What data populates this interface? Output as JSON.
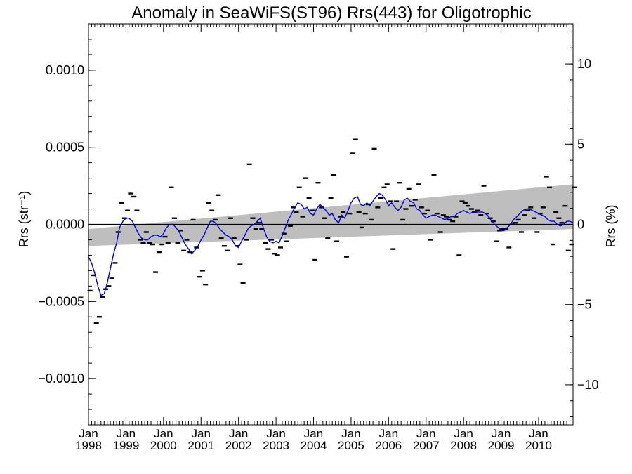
{
  "chart_data": {
    "type": "scatter",
    "title": "Anomaly in SeaWiFS(ST96) Rrs(443) for Oligotrophic",
    "ylabel_left": "Rrs (str⁻¹)",
    "ylabel_right": "Rrs (%)",
    "xlim": [
      1998.0,
      2010.917
    ],
    "ylim": [
      -0.0013,
      0.0013
    ],
    "ylim_right": [
      -12.5,
      12.5
    ],
    "left_ticks": [
      {
        "value": 0.001,
        "label": "0.0010"
      },
      {
        "value": 0.0005,
        "label": "0.0005"
      },
      {
        "value": 0.0,
        "label": "0.0000"
      },
      {
        "value": -0.0005,
        "label": "−0.0005"
      },
      {
        "value": -0.001,
        "label": "−0.0010"
      }
    ],
    "right_ticks": [
      {
        "value": 10,
        "label": "10"
      },
      {
        "value": 5,
        "label": "5"
      },
      {
        "value": 0,
        "label": "0"
      },
      {
        "value": -5,
        "label": "−5"
      },
      {
        "value": -10,
        "label": "−10"
      }
    ],
    "x_ticks": [
      {
        "value": 1998,
        "month": "Jan",
        "year": "1998"
      },
      {
        "value": 1999,
        "month": "Jan",
        "year": "1999"
      },
      {
        "value": 2000,
        "month": "Jan",
        "year": "2000"
      },
      {
        "value": 2001,
        "month": "Jan",
        "year": "2001"
      },
      {
        "value": 2002,
        "month": "Jan",
        "year": "2002"
      },
      {
        "value": 2003,
        "month": "Jan",
        "year": "2003"
      },
      {
        "value": 2004,
        "month": "Jan",
        "year": "2004"
      },
      {
        "value": 2005,
        "month": "Jan",
        "year": "2005"
      },
      {
        "value": 2006,
        "month": "Jan",
        "year": "2006"
      },
      {
        "value": 2007,
        "month": "Jan",
        "year": "2007"
      },
      {
        "value": 2008,
        "month": "Jan",
        "year": "2008"
      },
      {
        "value": 2009,
        "month": "Jan",
        "year": "2009"
      },
      {
        "value": 2010,
        "month": "Jan",
        "year": "2010"
      }
    ],
    "zero_line": 0.0,
    "trend_band": {
      "x": [
        1998.0,
        2010.917
      ],
      "lower": [
        -0.00014,
        -3e-05
      ],
      "upper": [
        -3e-05,
        0.00026
      ]
    },
    "monthly_points": [
      [
        1998.04,
        -0.00043
      ],
      [
        1998.12,
        -0.00033
      ],
      [
        1998.21,
        -0.00064
      ],
      [
        1998.29,
        -0.0006
      ],
      [
        1998.38,
        -0.00047
      ],
      [
        1998.46,
        -0.00042
      ],
      [
        1998.54,
        -0.0004
      ],
      [
        1998.62,
        -0.00035
      ],
      [
        1998.71,
        -0.00025
      ],
      [
        1998.79,
        -5e-05
      ],
      [
        1998.88,
        0.00014
      ],
      [
        1998.96,
        4e-05
      ],
      [
        1999.04,
        9e-05
      ],
      [
        1999.12,
        0.0002
      ],
      [
        1999.21,
        0.00018
      ],
      [
        1999.29,
        9e-05
      ],
      [
        1999.38,
        -0.0001
      ],
      [
        1999.46,
        -0.00012
      ],
      [
        1999.54,
        -5e-05
      ],
      [
        1999.62,
        -0.00012
      ],
      [
        1999.71,
        -0.00013
      ],
      [
        1999.79,
        -0.00031
      ],
      [
        1999.88,
        -0.00018
      ],
      [
        1999.96,
        -0.00013
      ],
      [
        2000.04,
        -8e-05
      ],
      [
        2000.12,
        -0.00012
      ],
      [
        2000.21,
        0.00024
      ],
      [
        2000.29,
        4e-05
      ],
      [
        2000.38,
        -0.00012
      ],
      [
        2000.46,
        -4e-05
      ],
      [
        2000.54,
        -0.00017
      ],
      [
        2000.62,
        -0.0001
      ],
      [
        2000.71,
        -0.00018
      ],
      [
        2000.79,
        3e-05
      ],
      [
        2000.88,
        -0.00015
      ],
      [
        2000.96,
        -0.00034
      ],
      [
        2001.04,
        -0.0003
      ],
      [
        2001.12,
        -0.00039
      ],
      [
        2001.21,
        0.00014
      ],
      [
        2001.29,
        9e-05
      ],
      [
        2001.38,
        3e-05
      ],
      [
        2001.46,
        0.00019
      ],
      [
        2001.54,
        -9e-05
      ],
      [
        2001.62,
        -0.00014
      ],
      [
        2001.71,
        -0.00017
      ],
      [
        2001.79,
        4e-05
      ],
      [
        2001.88,
        -9e-05
      ],
      [
        2001.96,
        -0.00014
      ],
      [
        2002.04,
        -0.00026
      ],
      [
        2002.12,
        -0.00038
      ],
      [
        2002.21,
        -0.0001
      ],
      [
        2002.29,
        0.00039
      ],
      [
        2002.38,
        4e-05
      ],
      [
        2002.46,
        -3e-05
      ],
      [
        2002.54,
        1e-05
      ],
      [
        2002.62,
        -3e-05
      ],
      [
        2002.71,
        -0.00012
      ],
      [
        2002.79,
        -0.00016
      ],
      [
        2002.88,
        -0.0001
      ],
      [
        2002.96,
        -0.00019
      ],
      [
        2003.04,
        -0.0002
      ],
      [
        2003.12,
        -0.00015
      ],
      [
        2003.21,
        -6e-05
      ],
      [
        2003.29,
        -0.00011
      ],
      [
        2003.38,
        -1e-05
      ],
      [
        2003.46,
        0.00011
      ],
      [
        2003.54,
        8e-05
      ],
      [
        2003.62,
        0.00024
      ],
      [
        2003.71,
        5e-05
      ],
      [
        2003.79,
        0.0003
      ],
      [
        2003.88,
        0.00017
      ],
      [
        2003.96,
        9e-05
      ],
      [
        2004.04,
        -0.00023
      ],
      [
        2004.12,
        0.00027
      ],
      [
        2004.21,
        0.00011
      ],
      [
        2004.29,
        4e-05
      ],
      [
        2004.38,
        -9e-05
      ],
      [
        2004.46,
        0.00017
      ],
      [
        2004.54,
        0.00032
      ],
      [
        2004.62,
        -0.00011
      ],
      [
        2004.71,
        5e-05
      ],
      [
        2004.79,
        8e-05
      ],
      [
        2004.88,
        -0.00021
      ],
      [
        2004.96,
        7e-05
      ],
      [
        2005.04,
        0.00046
      ],
      [
        2005.12,
        0.00055
      ],
      [
        2005.21,
        8e-05
      ],
      [
        2005.29,
        -2e-05
      ],
      [
        2005.38,
        7e-05
      ],
      [
        2005.46,
        0.00013
      ],
      [
        2005.54,
        3e-05
      ],
      [
        2005.62,
        0.00049
      ],
      [
        2005.71,
        0.00011
      ],
      [
        2005.79,
        0.00017
      ],
      [
        2005.88,
        0.00024
      ],
      [
        2005.96,
        0.00026
      ],
      [
        2006.04,
        0.00015
      ],
      [
        2006.12,
        -0.00016
      ],
      [
        2006.21,
        0.00015
      ],
      [
        2006.29,
        0.00027
      ],
      [
        2006.38,
        3e-05
      ],
      [
        2006.46,
        0.0001
      ],
      [
        2006.54,
        0.00023
      ],
      [
        2006.62,
        0.00012
      ],
      [
        2006.71,
        0.00016
      ],
      [
        2006.79,
        0.00026
      ],
      [
        2006.88,
        0.00011
      ],
      [
        2006.96,
        7e-05
      ],
      [
        2007.04,
        9e-05
      ],
      [
        2007.12,
        -0.0001
      ],
      [
        2007.21,
        0.00032
      ],
      [
        2007.29,
        7e-05
      ],
      [
        2007.38,
        -5e-05
      ],
      [
        2007.46,
        6e-05
      ],
      [
        2007.54,
        5e-05
      ],
      [
        2007.62,
        3e-05
      ],
      [
        2007.71,
        2e-05
      ],
      [
        2007.79,
        5e-05
      ],
      [
        2007.88,
        -0.0002
      ],
      [
        2007.96,
        0.00015
      ],
      [
        2008.04,
        0.00014
      ],
      [
        2008.12,
        0.00012
      ],
      [
        2008.21,
        0.0001
      ],
      [
        2008.29,
        8e-05
      ],
      [
        2008.38,
        9e-05
      ],
      [
        2008.46,
        6e-05
      ],
      [
        2008.54,
        0.00025
      ],
      [
        2008.62,
        7e-05
      ],
      [
        2008.71,
        4e-05
      ],
      [
        2008.79,
        2e-05
      ],
      [
        2008.88,
        -0.00011
      ],
      [
        2008.96,
        -4e-05
      ],
      [
        2009.04,
        -3e-05
      ],
      [
        2009.12,
        -3e-05
      ],
      [
        2009.21,
        -0.00015
      ],
      [
        2009.29,
        0.0
      ],
      [
        2009.38,
        1e-05
      ],
      [
        2009.46,
        3e-05
      ],
      [
        2009.54,
        -5e-05
      ],
      [
        2009.62,
        6e-05
      ],
      [
        2009.71,
        9e-05
      ],
      [
        2009.79,
        0.00011
      ],
      [
        2009.88,
        4e-05
      ],
      [
        2009.96,
        -5e-05
      ],
      [
        2010.04,
        7e-05
      ],
      [
        2010.12,
        0.00011
      ],
      [
        2010.21,
        0.00031
      ],
      [
        2010.29,
        0.00024
      ],
      [
        2010.38,
        -0.00013
      ],
      [
        2010.46,
        8e-05
      ],
      [
        2010.54,
        4e-05
      ],
      [
        2010.62,
        1e-05
      ],
      [
        2010.71,
        0.00012
      ],
      [
        2010.79,
        -0.00017
      ],
      [
        2010.88,
        -0.00013
      ],
      [
        2010.96,
        0.00024
      ]
    ],
    "smoothed_line": [
      [
        1998.0,
        -0.00021
      ],
      [
        1998.08,
        -0.00025
      ],
      [
        1998.17,
        -0.00032
      ],
      [
        1998.25,
        -0.0004
      ],
      [
        1998.33,
        -0.00046
      ],
      [
        1998.42,
        -0.00045
      ],
      [
        1998.5,
        -0.00038
      ],
      [
        1998.58,
        -0.00029
      ],
      [
        1998.67,
        -0.00019
      ],
      [
        1998.75,
        -0.00012
      ],
      [
        1998.83,
        -2e-05
      ],
      [
        1998.92,
        2e-05
      ],
      [
        1999.0,
        4e-05
      ],
      [
        1999.08,
        4e-05
      ],
      [
        1999.17,
        2e-05
      ],
      [
        1999.25,
        -2e-05
      ],
      [
        1999.33,
        -6e-05
      ],
      [
        1999.42,
        -9e-05
      ],
      [
        1999.5,
        -0.0001
      ],
      [
        1999.58,
        -0.0001
      ],
      [
        1999.67,
        -8e-05
      ],
      [
        1999.75,
        -7e-05
      ],
      [
        1999.83,
        -7e-05
      ],
      [
        1999.92,
        -8e-05
      ],
      [
        2000.0,
        -6e-05
      ],
      [
        2000.08,
        -2e-05
      ],
      [
        2000.17,
        0.0
      ],
      [
        2000.25,
        0.0
      ],
      [
        2000.33,
        -2e-05
      ],
      [
        2000.42,
        -5e-05
      ],
      [
        2000.5,
        -9e-05
      ],
      [
        2000.58,
        -0.00013
      ],
      [
        2000.67,
        -0.00016
      ],
      [
        2000.75,
        -0.00019
      ],
      [
        2000.83,
        -0.00017
      ],
      [
        2000.92,
        -0.00014
      ],
      [
        2001.0,
        -0.0001
      ],
      [
        2001.08,
        -7e-05
      ],
      [
        2001.17,
        -2e-05
      ],
      [
        2001.25,
        2e-05
      ],
      [
        2001.33,
        2e-05
      ],
      [
        2001.42,
        0.0
      ],
      [
        2001.5,
        -3e-05
      ],
      [
        2001.58,
        -5e-05
      ],
      [
        2001.67,
        -7e-05
      ],
      [
        2001.75,
        -8e-05
      ],
      [
        2001.83,
        -0.0001
      ],
      [
        2001.92,
        -0.00014
      ],
      [
        2002.0,
        -0.00015
      ],
      [
        2002.08,
        -0.00011
      ],
      [
        2002.17,
        -7e-05
      ],
      [
        2002.25,
        -3e-05
      ],
      [
        2002.33,
        -1e-05
      ],
      [
        2002.42,
        0.0
      ],
      [
        2002.5,
        2e-05
      ],
      [
        2002.58,
        4e-05
      ],
      [
        2002.67,
        -3e-05
      ],
      [
        2002.75,
        -8e-05
      ],
      [
        2002.83,
        -0.00011
      ],
      [
        2002.92,
        -0.00012
      ],
      [
        2003.0,
        -0.00011
      ],
      [
        2003.08,
        -0.00012
      ],
      [
        2003.17,
        -7e-05
      ],
      [
        2003.25,
        -2e-05
      ],
      [
        2003.33,
        3e-05
      ],
      [
        2003.42,
        7e-05
      ],
      [
        2003.5,
        0.00011
      ],
      [
        2003.58,
        0.00014
      ],
      [
        2003.67,
        0.00013
      ],
      [
        2003.75,
        0.0001
      ],
      [
        2003.83,
        0.00011
      ],
      [
        2003.92,
        7e-05
      ],
      [
        2004.0,
        6e-05
      ],
      [
        2004.08,
        0.0001
      ],
      [
        2004.17,
        0.00013
      ],
      [
        2004.25,
        0.00011
      ],
      [
        2004.33,
        9e-05
      ],
      [
        2004.42,
        6e-05
      ],
      [
        2004.5,
        7e-05
      ],
      [
        2004.58,
        3e-05
      ],
      [
        2004.67,
        1e-05
      ],
      [
        2004.75,
        6e-05
      ],
      [
        2004.83,
        4e-05
      ],
      [
        2004.92,
        9e-05
      ],
      [
        2005.0,
        0.00014
      ],
      [
        2005.08,
        0.00017
      ],
      [
        2005.17,
        0.00018
      ],
      [
        2005.25,
        0.00013
      ],
      [
        2005.33,
        0.00012
      ],
      [
        2005.42,
        0.00014
      ],
      [
        2005.5,
        0.00012
      ],
      [
        2005.58,
        0.00015
      ],
      [
        2005.67,
        0.00018
      ],
      [
        2005.75,
        0.0002
      ],
      [
        2005.83,
        0.00019
      ],
      [
        2005.92,
        0.00016
      ],
      [
        2006.0,
        0.00012
      ],
      [
        2006.08,
        0.00014
      ],
      [
        2006.17,
        0.00011
      ],
      [
        2006.25,
        9e-05
      ],
      [
        2006.33,
        0.00011
      ],
      [
        2006.42,
        0.00016
      ],
      [
        2006.5,
        0.00017
      ],
      [
        2006.58,
        0.00015
      ],
      [
        2006.67,
        0.00014
      ],
      [
        2006.75,
        0.0001
      ],
      [
        2006.83,
        9e-05
      ],
      [
        2006.92,
        6e-05
      ],
      [
        2007.0,
        4e-05
      ],
      [
        2007.08,
        5e-05
      ],
      [
        2007.17,
        6e-05
      ],
      [
        2007.25,
        6e-05
      ],
      [
        2007.33,
        5e-05
      ],
      [
        2007.42,
        4e-05
      ],
      [
        2007.5,
        3e-05
      ],
      [
        2007.58,
        4e-05
      ],
      [
        2007.67,
        5e-05
      ],
      [
        2007.75,
        5e-05
      ],
      [
        2007.83,
        7e-05
      ],
      [
        2007.92,
        8e-05
      ],
      [
        2008.0,
        9e-05
      ],
      [
        2008.08,
        8e-05
      ],
      [
        2008.17,
        7e-05
      ],
      [
        2008.25,
        8e-05
      ],
      [
        2008.33,
        8e-05
      ],
      [
        2008.42,
        8e-05
      ],
      [
        2008.5,
        8e-05
      ],
      [
        2008.58,
        7e-05
      ],
      [
        2008.67,
        5e-05
      ],
      [
        2008.75,
        2e-05
      ],
      [
        2008.83,
        0.0
      ],
      [
        2008.92,
        -2e-05
      ],
      [
        2009.0,
        -4e-05
      ],
      [
        2009.08,
        -4e-05
      ],
      [
        2009.17,
        -2e-05
      ],
      [
        2009.25,
        0.0
      ],
      [
        2009.33,
        3e-05
      ],
      [
        2009.42,
        5e-05
      ],
      [
        2009.5,
        7e-05
      ],
      [
        2009.58,
        9e-05
      ],
      [
        2009.67,
        0.0001
      ],
      [
        2009.75,
        0.0001
      ],
      [
        2009.83,
        9e-05
      ],
      [
        2009.92,
        8e-05
      ],
      [
        2010.0,
        7e-05
      ],
      [
        2010.08,
        6e-05
      ],
      [
        2010.17,
        5e-05
      ],
      [
        2010.25,
        3e-05
      ],
      [
        2010.33,
        2e-05
      ],
      [
        2010.42,
        2e-05
      ],
      [
        2010.5,
        0.0
      ],
      [
        2010.58,
        -1e-05
      ],
      [
        2010.67,
        0.0
      ],
      [
        2010.75,
        2e-05
      ],
      [
        2010.83,
        2e-05
      ],
      [
        2010.92,
        1e-05
      ]
    ],
    "colors": {
      "line": "#0000dd",
      "band": "#bebebe",
      "points": "#000000",
      "axes": "#000000"
    },
    "grid": false
  }
}
